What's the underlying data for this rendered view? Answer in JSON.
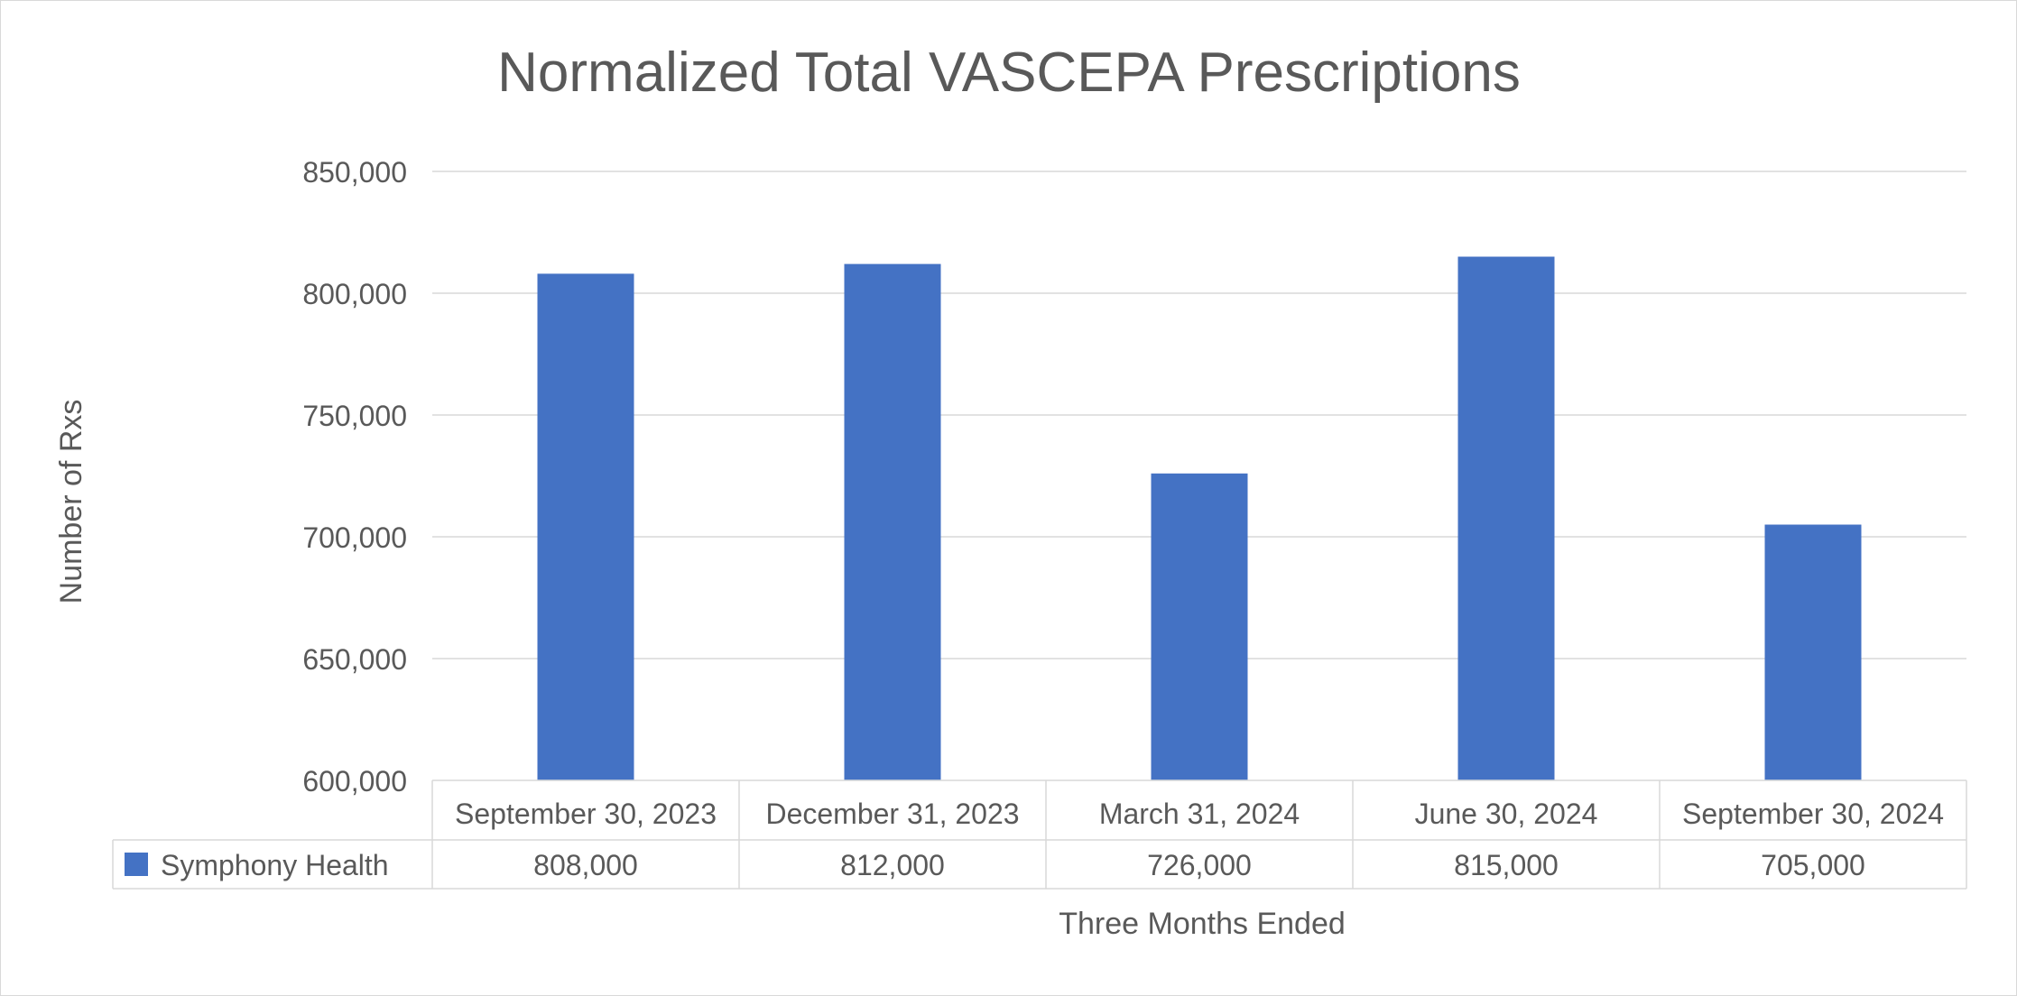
{
  "chart_data": {
    "type": "bar",
    "title": "Normalized Total VASCEPA Prescriptions",
    "xlabel": "Three Months Ended",
    "ylabel": "Number of Rxs",
    "categories": [
      "September 30, 2023",
      "December 31, 2023",
      "March 31, 2024",
      "June 30, 2024",
      "September 30, 2024"
    ],
    "series": [
      {
        "name": "Symphony Health",
        "color": "#4472c4",
        "values": [
          808000,
          812000,
          726000,
          815000,
          705000
        ],
        "value_labels": [
          "808,000",
          "812,000",
          "726,000",
          "815,000",
          "705,000"
        ]
      }
    ],
    "ylim": [
      600000,
      850000
    ],
    "yticks": [
      600000,
      650000,
      700000,
      750000,
      800000,
      850000
    ],
    "ytick_labels": [
      "600,000",
      "650,000",
      "700,000",
      "750,000",
      "800,000",
      "850,000"
    ],
    "grid": true,
    "legend": "data-table",
    "colors": {
      "bar": "#4472c4",
      "gridline": "#d9d9d9",
      "text": "#595959",
      "table_border": "#d9d9d9"
    }
  }
}
